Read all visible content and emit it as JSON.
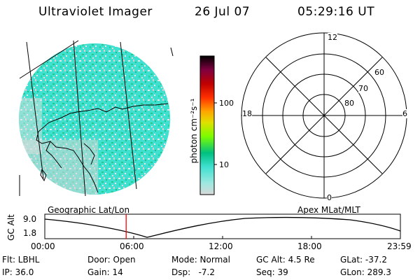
{
  "header": {
    "instrument": "Ultraviolet Imager",
    "date": "26 Jul 07",
    "time": "05:29:16 UT"
  },
  "geo_panel": {
    "label": "Geographic Lat/Lon"
  },
  "polar_panel": {
    "label": "Apex MLat/MLT",
    "mlt_labels": {
      "top": "12",
      "left": "18",
      "right": "6",
      "bottom": "0"
    },
    "mlat_labels": [
      "60",
      "70",
      "80"
    ]
  },
  "colorbar": {
    "unit": "photon cm⁻²s⁻¹",
    "ticks": [
      "100",
      "10"
    ],
    "colors": [
      "#d8d8d8",
      "#40e0d0",
      "#00c080",
      "#7cfc00",
      "#e0e000",
      "#ffa500",
      "#ff3000",
      "#c00000",
      "#800040",
      "#300030",
      "#000000"
    ]
  },
  "altitude_plot": {
    "ylabel": "GC Alt",
    "yticks": [
      "9.0",
      "1.8"
    ],
    "xticks": [
      "00:00",
      "06:00",
      "12:00",
      "18:00",
      "23:59"
    ],
    "marker_time_hours": 5.49,
    "marker_color": "#ff0000"
  },
  "info": {
    "row1": {
      "flt": "Flt: LBHL",
      "door": "Door: Open",
      "mode": "Mode: Normal",
      "gcalt": "GC Alt: 4.5 Re",
      "glat": "GLat: -37.2"
    },
    "row2": {
      "ip": "IP: 36.0",
      "gain": "Gain: 14",
      "dsp": "Dsp:   -7.2",
      "seq": "Seq: 39",
      "glon": "GLon: 289.3"
    }
  }
}
